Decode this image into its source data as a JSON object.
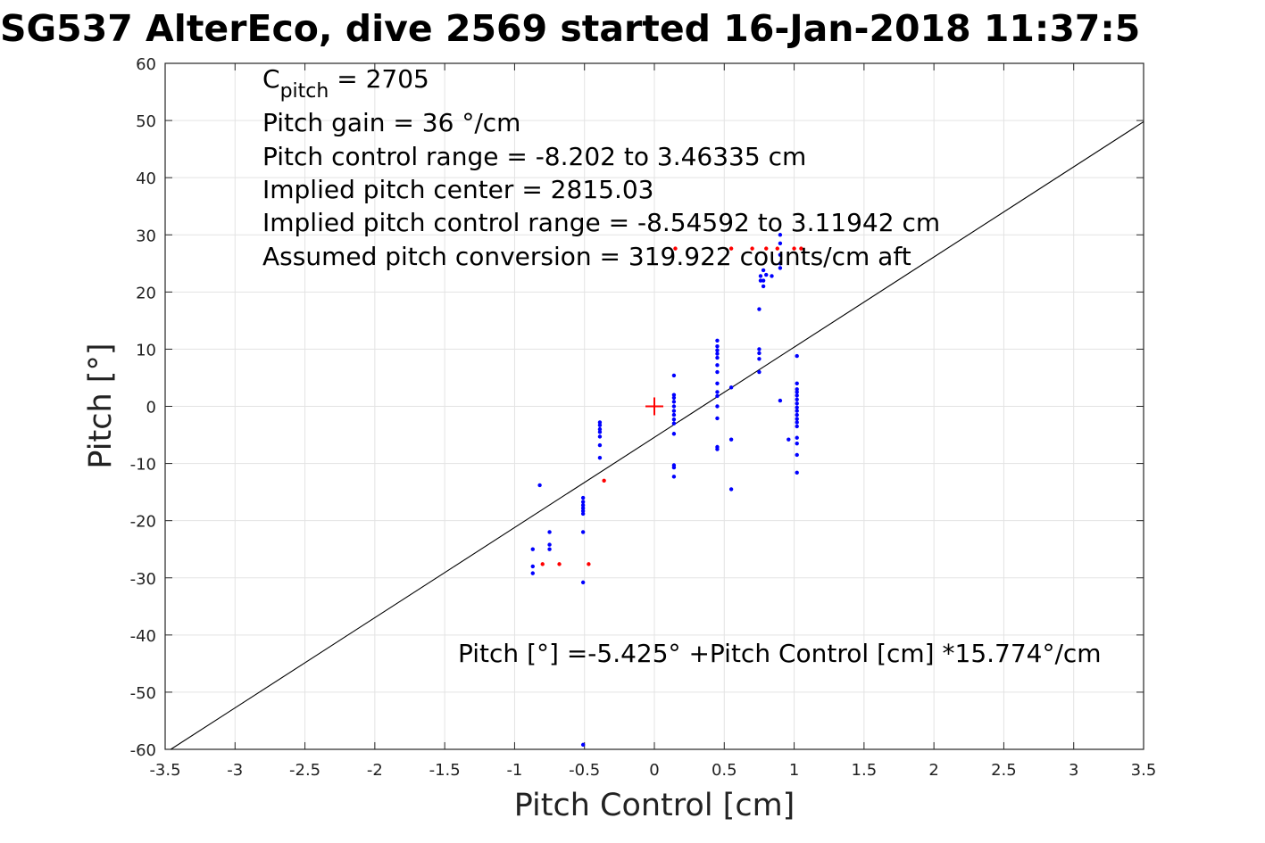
{
  "chart_data": {
    "type": "scatter",
    "title": "SG537 AlterEco, dive 2569 started 16-Jan-2018 11:37:5",
    "xlabel": "Pitch Control [cm]",
    "ylabel": "Pitch [°]",
    "xlim": [
      -3.5,
      3.5
    ],
    "ylim": [
      -60,
      60
    ],
    "xticks": [
      -3.5,
      -3,
      -2.5,
      -2,
      -1.5,
      -1,
      -0.5,
      0,
      0.5,
      1,
      1.5,
      2,
      2.5,
      3,
      3.5
    ],
    "xtick_labels": [
      "-3.5",
      "-3",
      "-2.5",
      "-2",
      "-1.5",
      "-1",
      "-0.5",
      "0",
      "0.5",
      "1",
      "1.5",
      "2",
      "2.5",
      "3",
      "3.5"
    ],
    "yticks": [
      -60,
      -50,
      -40,
      -30,
      -20,
      -10,
      0,
      10,
      20,
      30,
      40,
      50,
      60
    ],
    "ytick_labels": [
      "-60",
      "-50",
      "-40",
      "-30",
      "-20",
      "-10",
      "0",
      "10",
      "20",
      "30",
      "40",
      "50",
      "60"
    ],
    "grid": true,
    "annotations": {
      "c_pitch_main": "C",
      "c_pitch_sub": "pitch",
      "c_pitch_value": " = 2705",
      "lines": [
        "Pitch gain = 36 °/cm",
        "Pitch control range = -8.202 to 3.46335 cm",
        "Implied pitch center = 2815.03",
        "Implied pitch control range = -8.54592 to 3.11942 cm",
        "Assumed pitch conversion = 319.922 counts/cm aft"
      ],
      "equation": "Pitch [°] =-5.425° +Pitch Control [cm] *15.774°/cm"
    },
    "fit_line": {
      "intercept": -5.425,
      "slope": 15.774,
      "color": "#000000"
    },
    "center_marker": {
      "x": 0,
      "y": 0,
      "color": "#ff0000"
    },
    "series": [
      {
        "color": "#0000ff",
        "points": [
          [
            -0.87,
            -25
          ],
          [
            -0.87,
            -28
          ],
          [
            -0.87,
            -29.2
          ],
          [
            -0.82,
            -13.8
          ],
          [
            -0.75,
            -22
          ],
          [
            -0.75,
            -24.2
          ],
          [
            -0.75,
            -25
          ],
          [
            -0.51,
            -16
          ],
          [
            -0.51,
            -16.7
          ],
          [
            -0.51,
            -17.3
          ],
          [
            -0.51,
            -17.8
          ],
          [
            -0.51,
            -18.3
          ],
          [
            -0.51,
            -18.8
          ],
          [
            -0.51,
            -22
          ],
          [
            -0.51,
            -30.8
          ],
          [
            -0.51,
            -59.2
          ],
          [
            -0.39,
            -2.8
          ],
          [
            -0.39,
            -3.3
          ],
          [
            -0.39,
            -4
          ],
          [
            -0.39,
            -4.5
          ],
          [
            -0.39,
            -5.3
          ],
          [
            -0.39,
            -6.8
          ],
          [
            -0.39,
            -9
          ],
          [
            0.14,
            5.4
          ],
          [
            0.14,
            2
          ],
          [
            0.14,
            1.5
          ],
          [
            0.14,
            0.8
          ],
          [
            0.14,
            0
          ],
          [
            0.14,
            -0.8
          ],
          [
            0.14,
            -1.5
          ],
          [
            0.14,
            -2.3
          ],
          [
            0.14,
            -3
          ],
          [
            0.14,
            -4.8
          ],
          [
            0.14,
            -10.3
          ],
          [
            0.14,
            -10.7
          ],
          [
            0.14,
            -12.3
          ],
          [
            0.45,
            11.5
          ],
          [
            0.45,
            10.5
          ],
          [
            0.45,
            9.8
          ],
          [
            0.45,
            9.2
          ],
          [
            0.45,
            8.5
          ],
          [
            0.45,
            7.2
          ],
          [
            0.45,
            6
          ],
          [
            0.45,
            4
          ],
          [
            0.45,
            2.5
          ],
          [
            0.45,
            1.8
          ],
          [
            0.45,
            0
          ],
          [
            0.45,
            -2.1
          ],
          [
            0.45,
            -7.1
          ],
          [
            0.45,
            -7.5
          ],
          [
            0.55,
            3.3
          ],
          [
            0.55,
            -5.8
          ],
          [
            0.55,
            -14.5
          ],
          [
            0.75,
            17
          ],
          [
            0.75,
            10
          ],
          [
            0.75,
            9.3
          ],
          [
            0.75,
            8.3
          ],
          [
            0.75,
            6
          ],
          [
            0.76,
            22
          ],
          [
            0.76,
            22.8
          ],
          [
            0.78,
            21
          ],
          [
            0.78,
            22
          ],
          [
            0.78,
            23.8
          ],
          [
            0.8,
            23
          ],
          [
            0.84,
            22.8
          ],
          [
            0.9,
            30
          ],
          [
            0.9,
            28.5
          ],
          [
            0.9,
            26.5
          ],
          [
            0.9,
            25
          ],
          [
            0.9,
            24.2
          ],
          [
            0.9,
            1
          ],
          [
            0.96,
            -5.8
          ],
          [
            1.02,
            8.8
          ],
          [
            1.02,
            4
          ],
          [
            1.02,
            3
          ],
          [
            1.02,
            2.5
          ],
          [
            1.02,
            1.9
          ],
          [
            1.02,
            1.2
          ],
          [
            1.02,
            0.5
          ],
          [
            1.02,
            -0.2
          ],
          [
            1.02,
            -0.8
          ],
          [
            1.02,
            -1.5
          ],
          [
            1.02,
            -2.2
          ],
          [
            1.02,
            -2.8
          ],
          [
            1.02,
            -3.5
          ],
          [
            1.02,
            -5.5
          ],
          [
            1.02,
            -6.5
          ],
          [
            1.02,
            -8.5
          ],
          [
            1.02,
            -11.6
          ]
        ]
      },
      {
        "color": "#ff0000",
        "points": [
          [
            -0.8,
            -27.6
          ],
          [
            -0.68,
            -27.6
          ],
          [
            -0.47,
            -27.6
          ],
          [
            -0.36,
            -13
          ],
          [
            0.15,
            27.6
          ],
          [
            0.55,
            27.6
          ],
          [
            0.7,
            27.6
          ],
          [
            0.8,
            27.6
          ],
          [
            0.88,
            27.6
          ],
          [
            1.0,
            27.6
          ],
          [
            1.05,
            27.6
          ]
        ]
      }
    ]
  }
}
